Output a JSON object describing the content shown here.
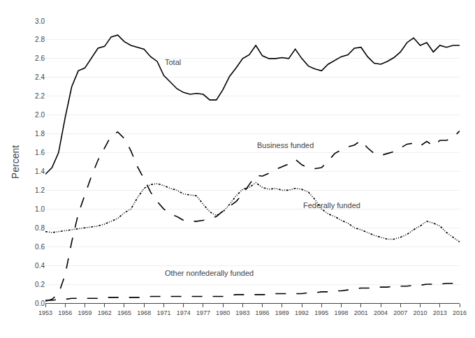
{
  "chart_data": {
    "type": "line",
    "ylabel": "Percent",
    "x": [
      1953,
      1954,
      1955,
      1956,
      1957,
      1958,
      1959,
      1960,
      1961,
      1962,
      1963,
      1964,
      1965,
      1966,
      1967,
      1968,
      1969,
      1970,
      1971,
      1972,
      1973,
      1974,
      1975,
      1976,
      1977,
      1978,
      1979,
      1980,
      1981,
      1982,
      1983,
      1984,
      1985,
      1986,
      1987,
      1988,
      1989,
      1990,
      1991,
      1992,
      1993,
      1994,
      1995,
      1996,
      1997,
      1998,
      1999,
      2000,
      2001,
      2002,
      2003,
      2004,
      2005,
      2006,
      2007,
      2008,
      2009,
      2010,
      2011,
      2012,
      2013,
      2014,
      2015,
      2016
    ],
    "series": [
      {
        "color": "#000000",
        "line_style": "solid",
        "values": [
          1.37,
          1.44,
          1.6,
          1.97,
          2.3,
          2.47,
          2.5,
          2.61,
          2.71,
          2.73,
          2.83,
          2.85,
          2.78,
          2.74,
          2.72,
          2.7,
          2.62,
          2.57,
          2.42,
          2.35,
          2.28,
          2.24,
          2.22,
          2.23,
          2.22,
          2.16,
          2.16,
          2.27,
          2.41,
          2.5,
          2.6,
          2.64,
          2.74,
          2.63,
          2.6,
          2.6,
          2.61,
          2.6,
          2.7,
          2.6,
          2.52,
          2.49,
          2.47,
          2.54,
          2.58,
          2.62,
          2.64,
          2.71,
          2.72,
          2.62,
          2.55,
          2.54,
          2.57,
          2.61,
          2.67,
          2.77,
          2.82,
          2.74,
          2.77,
          2.67,
          2.74,
          2.72,
          2.74,
          2.74
        ]
      },
      {
        "color": "#000000",
        "line_style": "long_dash",
        "values": [
          0.02,
          0.04,
          0.1,
          0.3,
          0.65,
          0.95,
          1.15,
          1.35,
          1.52,
          1.65,
          1.78,
          1.82,
          1.75,
          1.62,
          1.45,
          1.32,
          1.18,
          1.08,
          1.0,
          0.95,
          0.92,
          0.88,
          0.87,
          0.87,
          0.88,
          0.9,
          0.92,
          0.98,
          1.03,
          1.08,
          1.16,
          1.26,
          1.36,
          1.35,
          1.38,
          1.42,
          1.45,
          1.48,
          1.53,
          1.47,
          1.44,
          1.43,
          1.44,
          1.51,
          1.59,
          1.63,
          1.66,
          1.68,
          1.73,
          1.65,
          1.59,
          1.57,
          1.59,
          1.61,
          1.65,
          1.69,
          1.7,
          1.67,
          1.72,
          1.67,
          1.73,
          1.73,
          1.76,
          1.83
        ]
      },
      {
        "color": "#000000",
        "line_style": "dash_dot_dot",
        "values": [
          0.76,
          0.75,
          0.76,
          0.77,
          0.78,
          0.79,
          0.8,
          0.81,
          0.82,
          0.84,
          0.87,
          0.9,
          0.96,
          1.0,
          1.12,
          1.22,
          1.26,
          1.27,
          1.25,
          1.22,
          1.2,
          1.16,
          1.15,
          1.14,
          1.05,
          0.97,
          0.93,
          0.97,
          1.05,
          1.14,
          1.21,
          1.23,
          1.28,
          1.23,
          1.21,
          1.22,
          1.2,
          1.2,
          1.22,
          1.21,
          1.18,
          1.1,
          1.0,
          0.95,
          0.92,
          0.88,
          0.85,
          0.8,
          0.78,
          0.75,
          0.72,
          0.7,
          0.68,
          0.68,
          0.7,
          0.73,
          0.78,
          0.82,
          0.87,
          0.85,
          0.82,
          0.75,
          0.7,
          0.65
        ]
      },
      {
        "color": "#000000",
        "line_style": "long_dash",
        "values": [
          0.03,
          0.03,
          0.04,
          0.04,
          0.05,
          0.05,
          0.05,
          0.05,
          0.05,
          0.06,
          0.06,
          0.06,
          0.06,
          0.06,
          0.06,
          0.06,
          0.07,
          0.07,
          0.07,
          0.07,
          0.07,
          0.07,
          0.07,
          0.07,
          0.07,
          0.07,
          0.07,
          0.07,
          0.08,
          0.09,
          0.09,
          0.09,
          0.09,
          0.09,
          0.09,
          0.1,
          0.1,
          0.1,
          0.1,
          0.1,
          0.11,
          0.11,
          0.12,
          0.12,
          0.13,
          0.13,
          0.14,
          0.15,
          0.16,
          0.16,
          0.16,
          0.17,
          0.17,
          0.18,
          0.18,
          0.18,
          0.19,
          0.19,
          0.2,
          0.2,
          0.2,
          0.21,
          0.21,
          0.22
        ]
      }
    ],
    "annotations": [
      {
        "text": "Total",
        "x": 1971,
        "y": 2.5
      },
      {
        "text": "Business funded",
        "x": 1985,
        "y": 1.62
      },
      {
        "text": "Federally funded",
        "x": 1992,
        "y": 0.98
      },
      {
        "text": "Other nonfederally funded",
        "x": 1971,
        "y": 0.26
      }
    ],
    "xlim": [
      1953,
      2016
    ],
    "xticks": [
      1953,
      1956,
      1959,
      1962,
      1965,
      1968,
      1971,
      1974,
      1977,
      1980,
      1983,
      1986,
      1989,
      1992,
      1995,
      1998,
      2001,
      2004,
      2007,
      2010,
      2013,
      2016
    ],
    "ylim": [
      0.0,
      3.0
    ],
    "yticks": [
      {
        "value": 0.0,
        "label": "0.0"
      },
      0.2,
      0.4,
      0.6,
      0.8,
      {
        "value": 1.0,
        "label": "1.0"
      },
      1.2,
      1.4,
      1.6,
      1.8,
      {
        "value": 2.0,
        "label": "2.0"
      },
      2.2,
      2.4,
      2.6,
      2.8,
      {
        "value": 3.0,
        "label": "3.0"
      }
    ],
    "grid": "y"
  }
}
